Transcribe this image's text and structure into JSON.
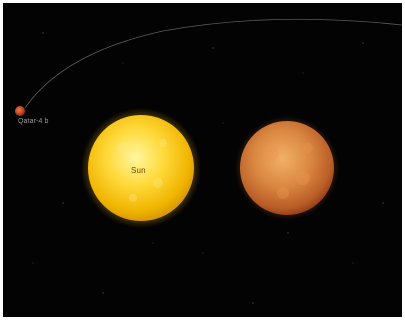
{
  "labels": {
    "sun": "Sun",
    "planet": "Qatar-4 b"
  },
  "colors": {
    "background": "#030303",
    "sun_core": "#fff27a",
    "sun_edge": "#e6a800",
    "star_core": "#e59a4a",
    "star_edge": "#a9461d",
    "planet": "#d0401f",
    "orbit": "#5a5a5a"
  }
}
